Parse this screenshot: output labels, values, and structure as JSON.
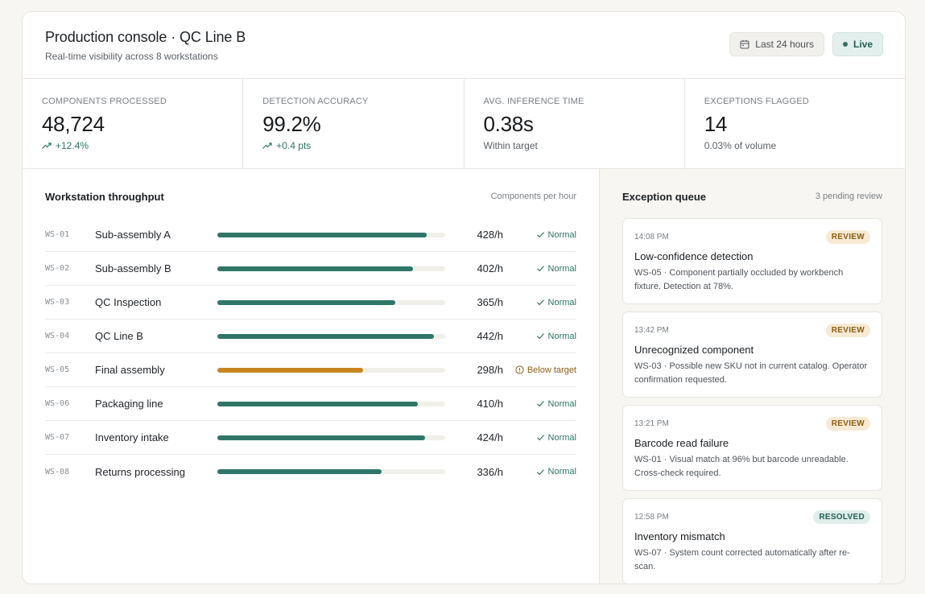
{
  "header": {
    "title": "Production console · QC Line B",
    "subtitle": "Real-time visibility across 8 workstations",
    "range_label": "Last 24 hours",
    "live_label": "Live"
  },
  "kpis": [
    {
      "label": "COMPONENTS PROCESSED",
      "value": "48,724",
      "foot": "+12.4%",
      "trend": "up"
    },
    {
      "label": "DETECTION ACCURACY",
      "value": "99.2%",
      "foot": "+0.4 pts",
      "trend": "up"
    },
    {
      "label": "AVG. INFERENCE TIME",
      "value": "0.38s",
      "foot": "Within target",
      "trend": "none"
    },
    {
      "label": "EXCEPTIONS FLAGGED",
      "value": "14",
      "foot": "0.03% of volume",
      "trend": "none"
    }
  ],
  "throughput": {
    "title": "Workstation throughput",
    "note": "Components per hour",
    "rows": [
      {
        "id": "WS-01",
        "name": "Sub-assembly A",
        "rate": "428/h",
        "fill": 0.92,
        "status": "Normal",
        "state": "ok"
      },
      {
        "id": "WS-02",
        "name": "Sub-assembly B",
        "rate": "402/h",
        "fill": 0.86,
        "status": "Normal",
        "state": "ok"
      },
      {
        "id": "WS-03",
        "name": "QC Inspection",
        "rate": "365/h",
        "fill": 0.78,
        "status": "Normal",
        "state": "ok"
      },
      {
        "id": "WS-04",
        "name": "QC Line B",
        "rate": "442/h",
        "fill": 0.95,
        "status": "Normal",
        "state": "ok"
      },
      {
        "id": "WS-05",
        "name": "Final assembly",
        "rate": "298/h",
        "fill": 0.64,
        "status": "Below target",
        "state": "warn"
      },
      {
        "id": "WS-06",
        "name": "Packaging line",
        "rate": "410/h",
        "fill": 0.88,
        "status": "Normal",
        "state": "ok"
      },
      {
        "id": "WS-07",
        "name": "Inventory intake",
        "rate": "424/h",
        "fill": 0.91,
        "status": "Normal",
        "state": "ok"
      },
      {
        "id": "WS-08",
        "name": "Returns processing",
        "rate": "336/h",
        "fill": 0.72,
        "status": "Normal",
        "state": "ok"
      }
    ]
  },
  "exceptions": {
    "title": "Exception queue",
    "note": "3 pending review",
    "items": [
      {
        "time": "14:08 PM",
        "badge": "REVIEW",
        "state": "review",
        "title": "Low-confidence detection",
        "desc": "WS-05 · Component partially occluded by workbench fixture. Detection at 78%."
      },
      {
        "time": "13:42 PM",
        "badge": "REVIEW",
        "state": "review",
        "title": "Unrecognized component",
        "desc": "WS-03 · Possible new SKU not in current catalog. Operator confirmation requested."
      },
      {
        "time": "13:21 PM",
        "badge": "REVIEW",
        "state": "review",
        "title": "Barcode read failure",
        "desc": "WS-01 · Visual match at 96% but barcode unreadable. Cross-check required."
      },
      {
        "time": "12:58 PM",
        "badge": "RESOLVED",
        "state": "resolved",
        "title": "Inventory mismatch",
        "desc": "WS-07 · System count corrected automatically after re-scan."
      }
    ]
  },
  "colors": {
    "accent": "#2f7668",
    "warning": "#c8851f",
    "review_bg": "#f7ead4",
    "resolved_bg": "#dfeeea"
  },
  "icons": {
    "range": "calendar-icon",
    "trend": "trend-up-icon",
    "ok": "check-icon",
    "warn": "alert-circle-icon"
  }
}
